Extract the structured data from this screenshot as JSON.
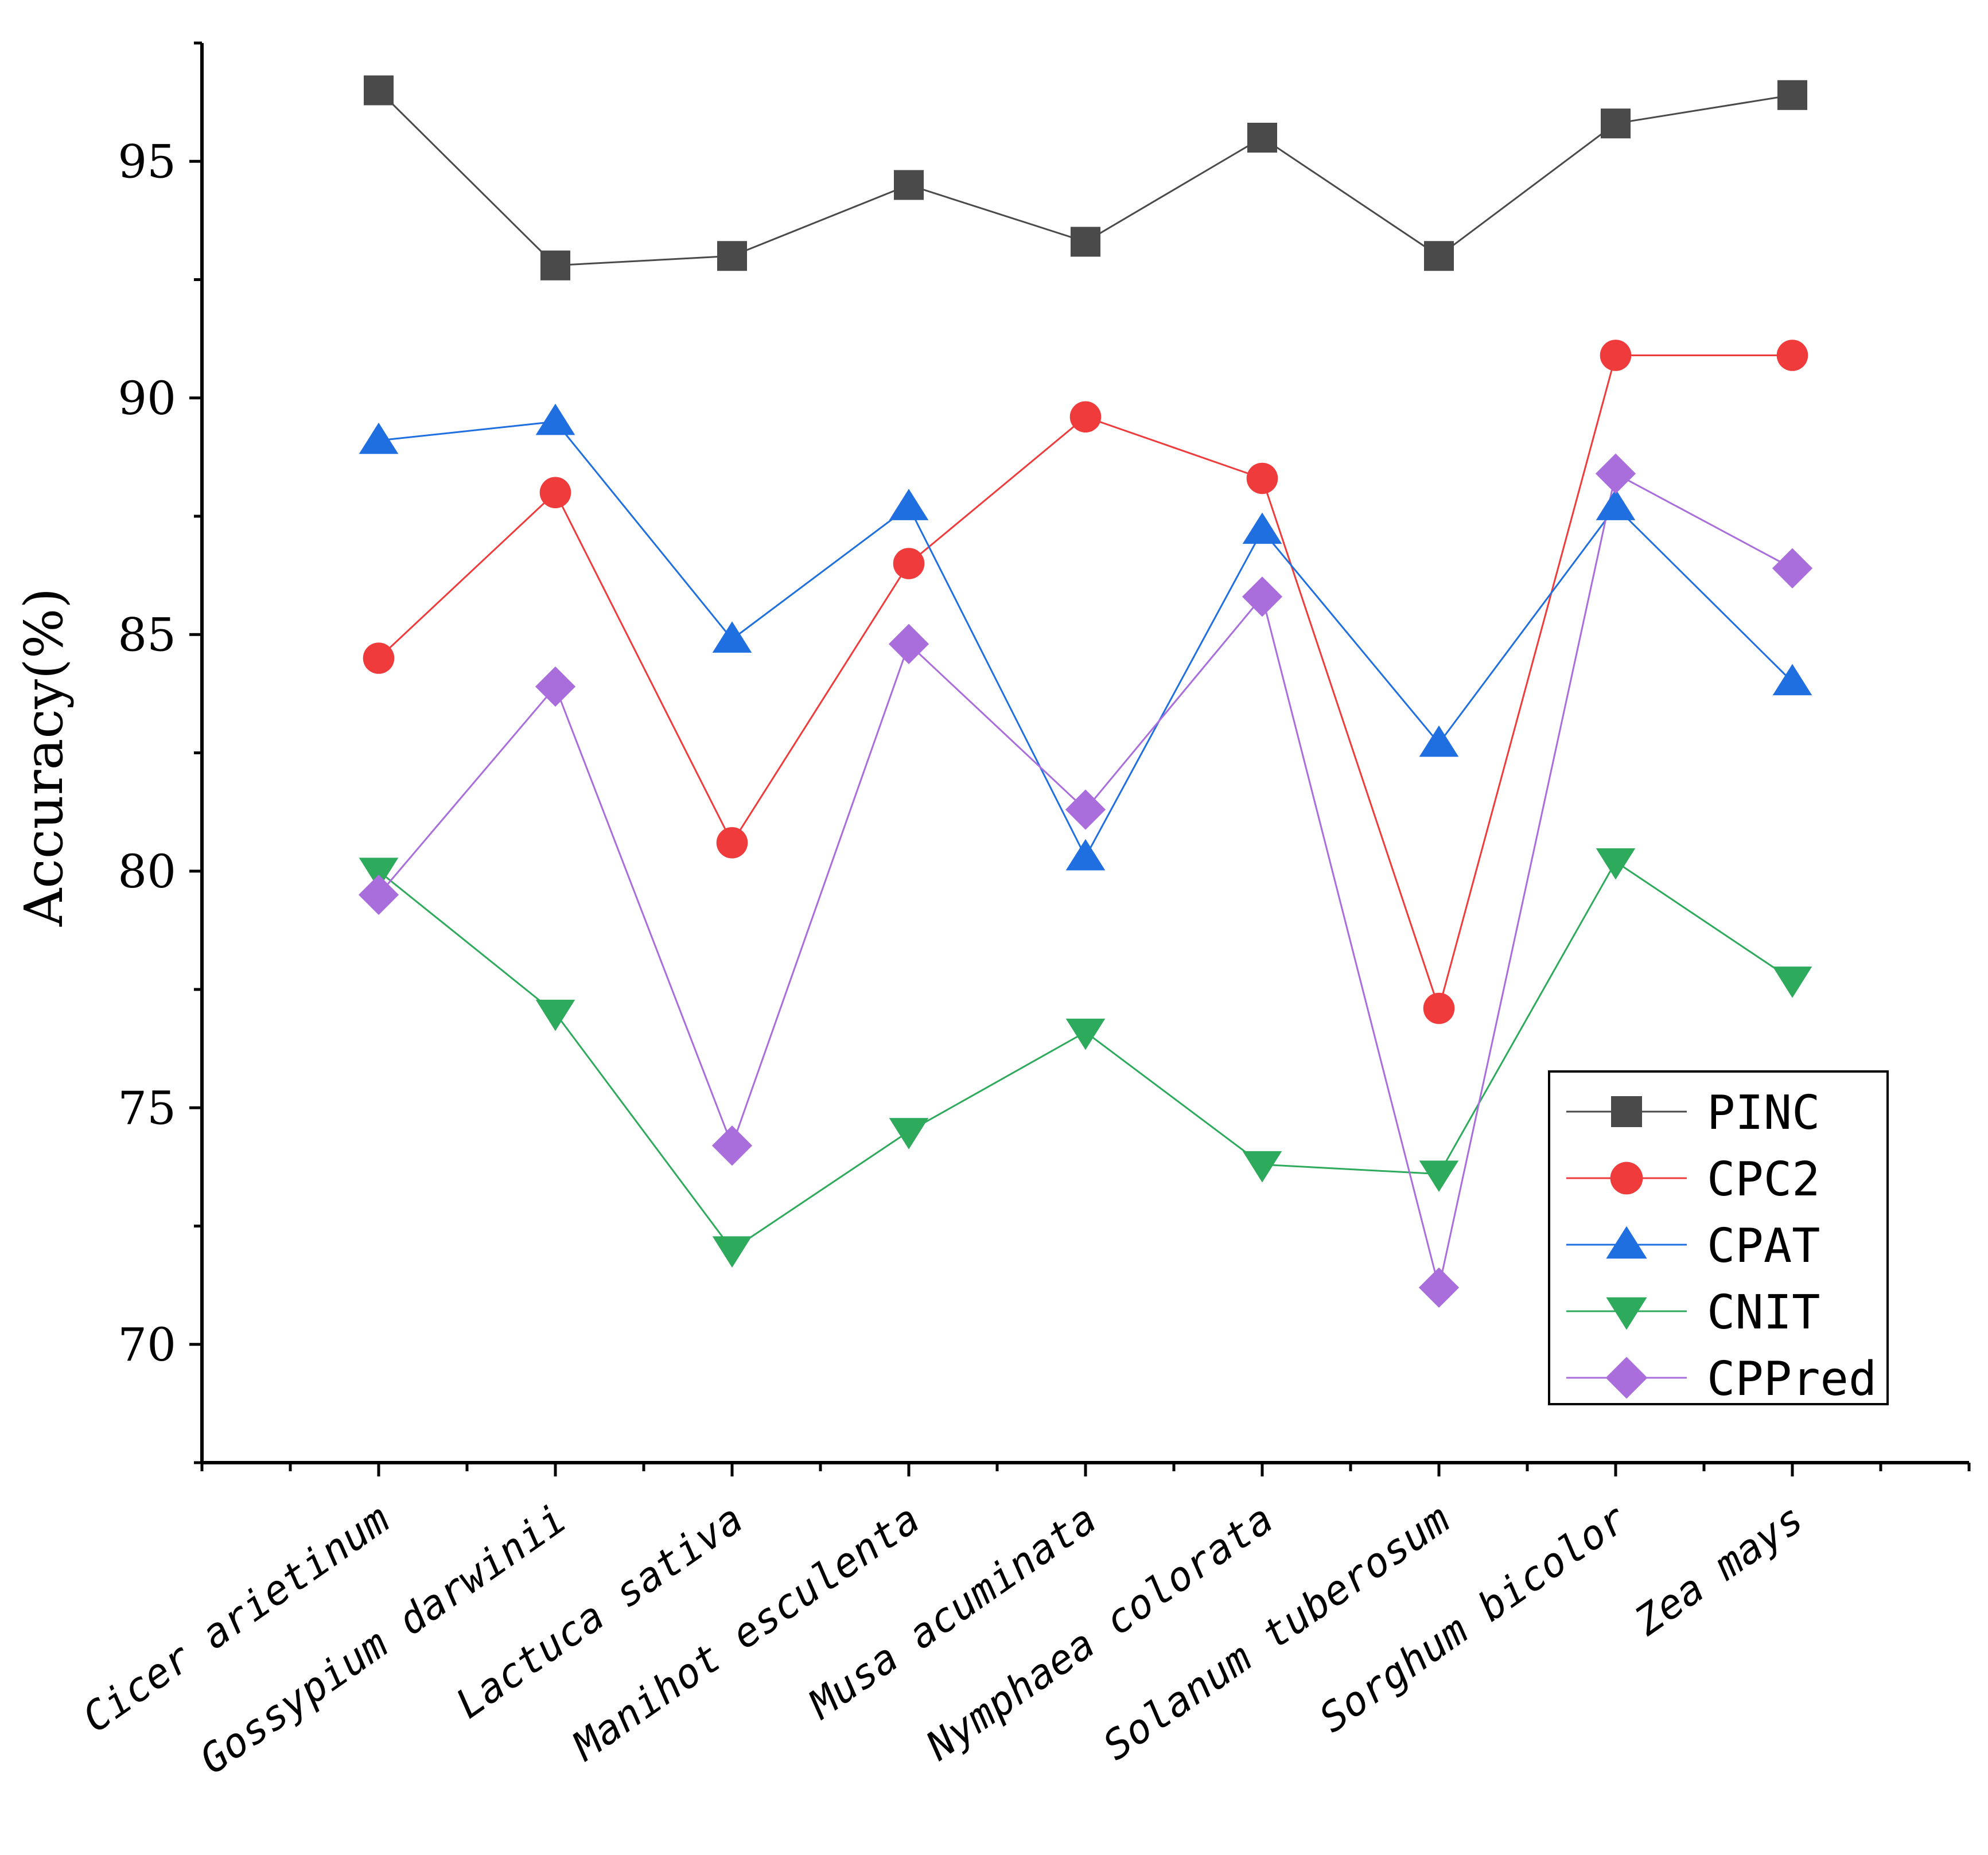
{
  "chart_data": {
    "type": "line",
    "title": "",
    "xlabel": "",
    "ylabel": "Accuracy(%)",
    "ylim": [
      67.5,
      97.5
    ],
    "yticks": [
      70,
      75,
      80,
      85,
      90,
      95
    ],
    "grid": false,
    "legend_position": "bottom-right",
    "categories": [
      "Cicer arietinum",
      "Gossypium darwinii",
      "Lactuca sativa",
      "Manihot esculenta",
      "Musa acuminata",
      "Nymphaea colorata",
      "Solanum tuberosum",
      "Sorghum bicolor",
      "Zea mays"
    ],
    "series": [
      {
        "name": "PINC",
        "color": "#4a4a4a",
        "marker": "square",
        "values": [
          96.5,
          92.8,
          93.0,
          94.5,
          93.3,
          95.5,
          93.0,
          95.8,
          96.4
        ]
      },
      {
        "name": "CPC2",
        "color": "#ef3b3b",
        "marker": "circle",
        "values": [
          84.5,
          88.0,
          80.6,
          86.5,
          89.6,
          88.3,
          77.1,
          90.9,
          90.9
        ]
      },
      {
        "name": "CPAT",
        "color": "#1f6fe0",
        "marker": "triangle-up",
        "values": [
          89.1,
          89.5,
          84.9,
          87.7,
          80.3,
          87.2,
          82.7,
          87.7,
          84.0
        ]
      },
      {
        "name": "CNIT",
        "color": "#2eaa5c",
        "marker": "triangle-down",
        "values": [
          80.0,
          77.0,
          72.0,
          74.5,
          76.6,
          73.8,
          73.6,
          80.2,
          77.7
        ]
      },
      {
        "name": "CPPred",
        "color": "#a96ddc",
        "marker": "diamond",
        "values": [
          79.5,
          83.9,
          74.2,
          84.8,
          81.3,
          85.8,
          71.2,
          88.4,
          86.4
        ]
      }
    ]
  }
}
